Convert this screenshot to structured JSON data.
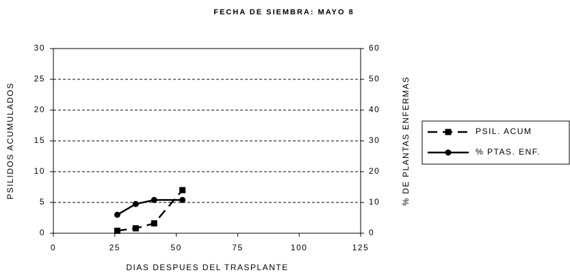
{
  "chart_data": {
    "type": "line",
    "title": "FECHA DE SIEMBRA: MAYO 8",
    "x_label": "DIAS DESPUES DEL TRASPLANTE",
    "y_label": "PSILIDOS ACUMULADOS",
    "y2_label": "% DE PLANTAS ENFERMAS",
    "x": [
      26,
      33.5,
      41,
      52.5
    ],
    "series": [
      {
        "name": "PSIL. ACUM",
        "color": "#000000",
        "values": [
          0.4,
          0.8,
          1.6,
          7
        ],
        "marker": "square",
        "dash": true
      },
      {
        "name": "% PTAS. ENF.",
        "color": "#000000",
        "values": [
          6,
          9.5,
          10.8,
          10.8
        ],
        "marker": "circle",
        "dash": false,
        "axis": "y2"
      }
    ],
    "xlim": [
      0,
      125
    ],
    "xticks": [
      0,
      25,
      50,
      75,
      100,
      125
    ],
    "ylim": [
      0,
      30
    ],
    "yticks": [
      0,
      5,
      10,
      15,
      20,
      25,
      30
    ],
    "y2lim": [
      0,
      60
    ],
    "y2ticks": [
      0,
      10,
      20,
      30,
      40,
      50,
      60
    ],
    "grid": true,
    "legend": "right"
  }
}
